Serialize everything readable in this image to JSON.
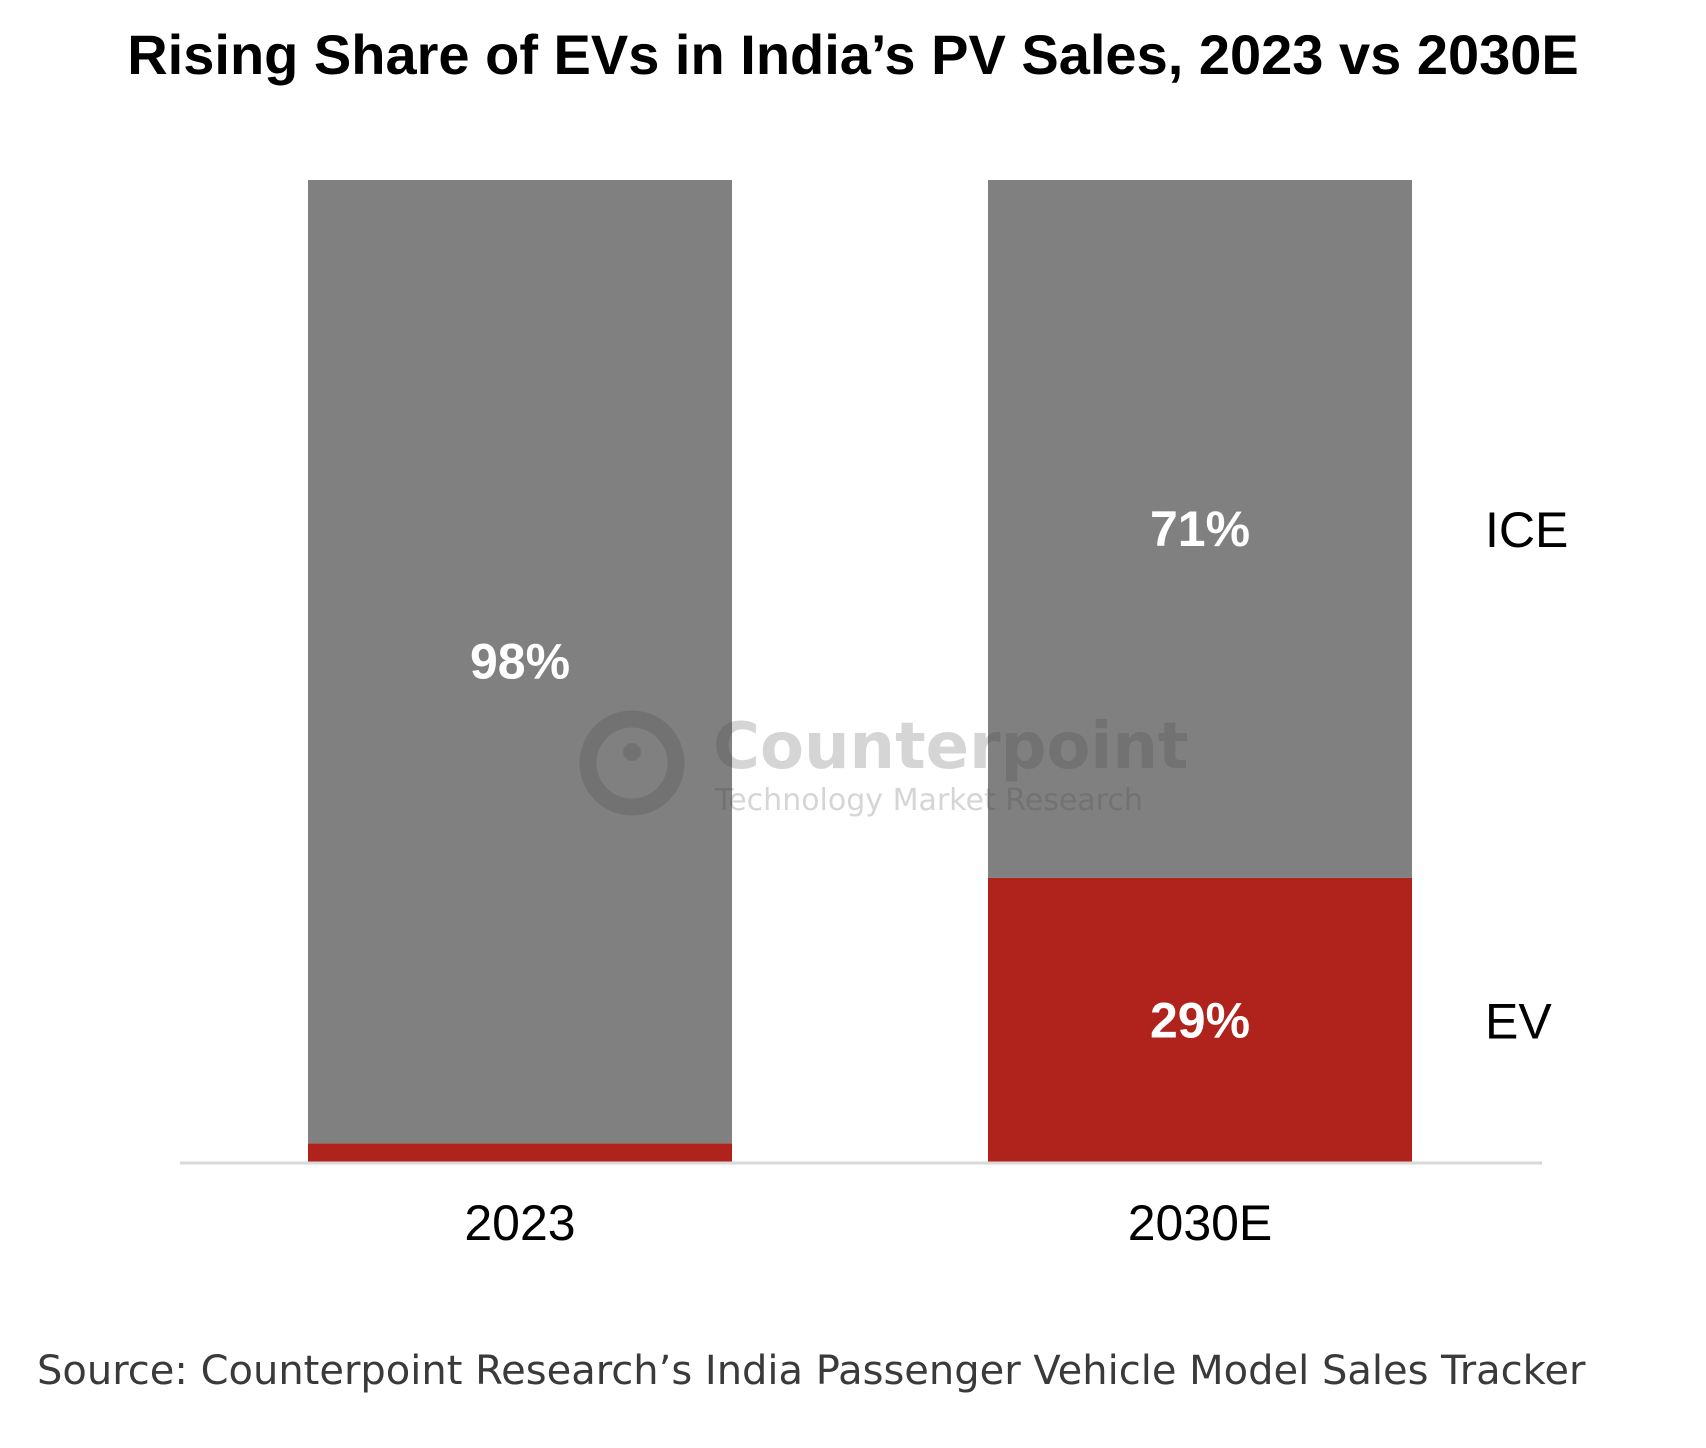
{
  "chart_data": {
    "type": "bar",
    "stacked": true,
    "title": "Rising Share of EVs in India’s PV Sales, 2023 vs 2030E",
    "xlabel": "",
    "ylabel": "",
    "categories": [
      "2023",
      "2030E"
    ],
    "ylim": [
      0,
      100
    ],
    "grid": false,
    "series": [
      {
        "name": "EV",
        "values": [
          2,
          29
        ],
        "color": "#b0231c",
        "data_labels": [
          "",
          "29%"
        ]
      },
      {
        "name": "ICE",
        "values": [
          98,
          71
        ],
        "color": "#808080",
        "data_labels": [
          "98%",
          "71%"
        ]
      }
    ],
    "legend_placement": "right, beside last bar"
  },
  "watermark": {
    "brand": "Counterpoint",
    "tagline": "Technology Market Research"
  },
  "source": "Source: Counterpoint Research’s India Passenger Vehicle Model Sales Tracker"
}
